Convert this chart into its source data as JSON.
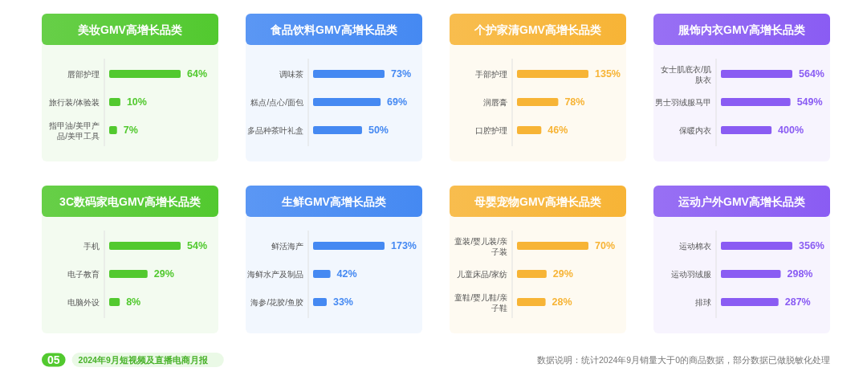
{
  "chart_data": [
    {
      "type": "bar",
      "orientation": "horizontal",
      "title": "美妆GMV高增长品类",
      "categories": [
        "唇部护理",
        "旅行装/体验装",
        "指甲油/美甲产品/美甲工具"
      ],
      "values": [
        64,
        10,
        7
      ],
      "value_labels": [
        "64%",
        "10%",
        "7%"
      ],
      "color": "#52c92f"
    },
    {
      "type": "bar",
      "orientation": "horizontal",
      "title": "食品饮料GMV高增长品类",
      "categories": [
        "调味茶",
        "糕点/点心/面包",
        "多品种茶叶礼盒"
      ],
      "values": [
        73,
        69,
        50
      ],
      "value_labels": [
        "73%",
        "69%",
        "50%"
      ],
      "color": "#4589f2"
    },
    {
      "type": "bar",
      "orientation": "horizontal",
      "title": "个护家清GMV高增长品类",
      "categories": [
        "手部护理",
        "润唇膏",
        "口腔护理"
      ],
      "values": [
        135,
        78,
        46
      ],
      "value_labels": [
        "135%",
        "78%",
        "46%"
      ],
      "color": "#f7b436"
    },
    {
      "type": "bar",
      "orientation": "horizontal",
      "title": "服饰内衣GMV高增长品类",
      "categories": [
        "女士肌底衣/肌肤衣",
        "男士羽绒服马甲",
        "保暖内衣"
      ],
      "values": [
        564,
        549,
        400
      ],
      "value_labels": [
        "564%",
        "549%",
        "400%"
      ],
      "color": "#8a5cf3"
    },
    {
      "type": "bar",
      "orientation": "horizontal",
      "title": "3C数码家电GMV高增长品类",
      "categories": [
        "手机",
        "电子教育",
        "电脑外设"
      ],
      "values": [
        54,
        29,
        8
      ],
      "value_labels": [
        "54%",
        "29%",
        "8%"
      ],
      "color": "#52c92f",
      "annotations": [
        "05",
        "2024年9月短视频及直播电商月报"
      ]
    },
    {
      "type": "bar",
      "orientation": "horizontal",
      "title": "生鲜GMV高增长品类",
      "categories": [
        "鲜活海产",
        "海鲜水产及制品",
        "海参/花胶/鱼胶"
      ],
      "values": [
        173,
        42,
        33
      ],
      "value_labels": [
        "173%",
        "42%",
        "33%"
      ],
      "color": "#4589f2"
    },
    {
      "type": "bar",
      "orientation": "horizontal",
      "title": "母婴宠物GMV高增长品类",
      "categories": [
        "童装/婴儿装/亲子装",
        "儿童床品/家纺",
        "童鞋/婴儿鞋/亲子鞋"
      ],
      "values": [
        70,
        29,
        28
      ],
      "value_labels": [
        "70%",
        "29%",
        "28%"
      ],
      "color": "#f7b436"
    },
    {
      "type": "bar",
      "orientation": "horizontal",
      "title": "运动户外GMV高增长品类",
      "categories": [
        "运动棉衣",
        "运动羽绒服",
        "排球"
      ],
      "values": [
        356,
        298,
        287
      ],
      "value_labels": [
        "356%",
        "298%",
        "287%"
      ],
      "color": "#8a5cf3",
      "annotations": [
        "数据说明：统计2024年9月销量大于0的商品数据，部分数据已做脱敏化处理"
      ]
    }
  ]
}
